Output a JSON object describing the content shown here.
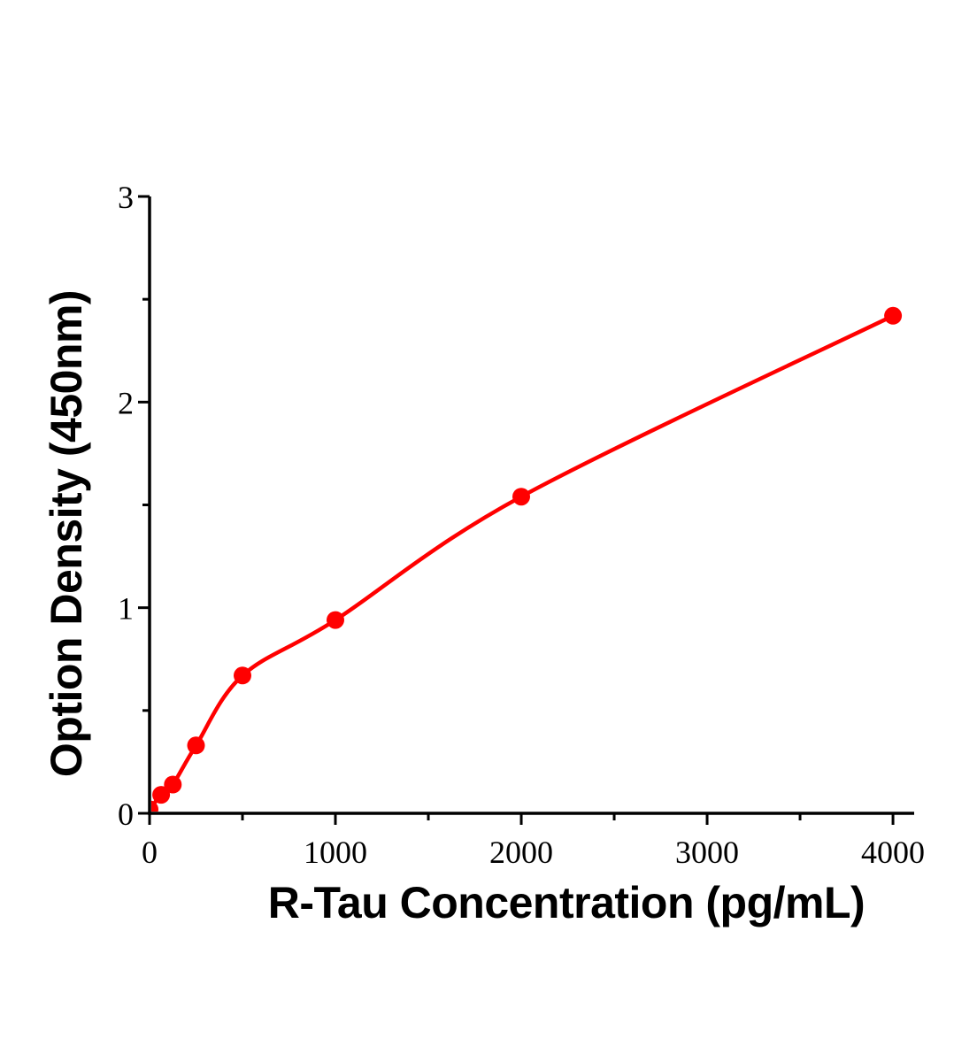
{
  "page": {
    "background": "#ffffff"
  },
  "chart_data": {
    "type": "scatter",
    "title": "",
    "xlabel": "R-Tau Concentration (pg/mL)",
    "ylabel": "Option Density (450nm)",
    "x": [
      0,
      62.5,
      125,
      250,
      500,
      1000,
      2000,
      4000
    ],
    "y": [
      0.02,
      0.09,
      0.14,
      0.33,
      0.67,
      0.94,
      1.54,
      2.42
    ],
    "fit_line": "smooth saturating standard-curve fit through all points, drawn point-to-point as a smooth spline",
    "xlim": [
      0,
      4114
    ],
    "ylim": [
      0,
      3
    ],
    "x_major_ticks": [
      0,
      1000,
      2000,
      3000,
      4000
    ],
    "x_tick_labels": [
      "0",
      "1000",
      "2000",
      "3000",
      "4000"
    ],
    "x_minor_ticks": [
      500,
      1500,
      2500,
      3500
    ],
    "y_major_ticks": [
      0,
      1,
      2,
      3
    ],
    "y_tick_labels": [
      "0",
      "1",
      "2",
      "3"
    ],
    "y_minor_ticks": [
      0.5,
      1.5,
      2.5
    ],
    "grid": false,
    "legend": false,
    "colors": {
      "curve": "#ff0000",
      "marker": "#ff0000",
      "axis": "#000000",
      "text": "#000000"
    }
  }
}
